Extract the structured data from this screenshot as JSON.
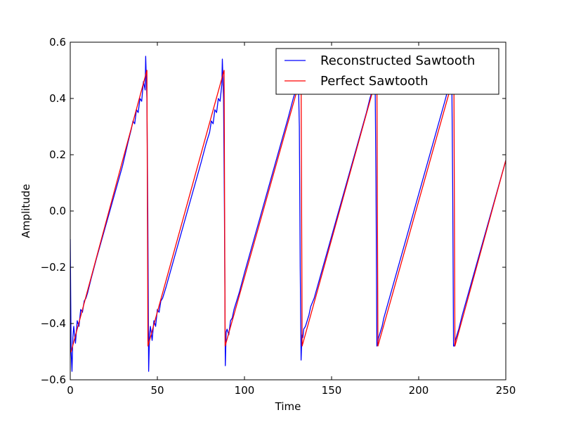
{
  "chart_data": {
    "type": "line",
    "title": "",
    "xlabel": "Time",
    "ylabel": "Amplitude",
    "xlim": [
      0,
      250
    ],
    "ylim": [
      -0.6,
      0.6
    ],
    "grid": false,
    "legend_placement": "upper-right",
    "xticks": [
      0,
      50,
      100,
      150,
      200,
      250
    ],
    "xtick_labels": [
      "0",
      "50",
      "100",
      "150",
      "200",
      "250"
    ],
    "yticks": [
      -0.6,
      -0.4,
      -0.2,
      0.0,
      0.2,
      0.4,
      0.6
    ],
    "ytick_labels": [
      "−0.6",
      "−0.4",
      "−0.2",
      "0.0",
      "0.2",
      "0.4",
      "0.6"
    ],
    "series": [
      {
        "name": "Reconstructed Sawtooth",
        "color": "#0000ff",
        "x": [
          0,
          0.5,
          1,
          1.5,
          2,
          3,
          4,
          5,
          6,
          7,
          8,
          9,
          10,
          12,
          15,
          20,
          25,
          30,
          33,
          35,
          36,
          37,
          38,
          39,
          40,
          41,
          42,
          43,
          43.3,
          44,
          44.5,
          45,
          45.5,
          46,
          47,
          48,
          49,
          50,
          51,
          52,
          53,
          55,
          60,
          65,
          70,
          75,
          78,
          80,
          81,
          82,
          83,
          84,
          85,
          86,
          87,
          87.3,
          88,
          88.5,
          89,
          89.5,
          90,
          91,
          92,
          93,
          94,
          95,
          97,
          100,
          105,
          110,
          115,
          120,
          125,
          128,
          130,
          131,
          131.5,
          132,
          132.5,
          133,
          133.5,
          134,
          135,
          136,
          137,
          138,
          140,
          145,
          150,
          155,
          160,
          165,
          170,
          172,
          174,
          175,
          175.5,
          176,
          176.5,
          177,
          178,
          179,
          180,
          185,
          190,
          195,
          200,
          205,
          210,
          215,
          218,
          219,
          219.5,
          220,
          220.5,
          221,
          222,
          223,
          225,
          230,
          235,
          240,
          245,
          250
        ],
        "y": [
          -0.1,
          -0.5,
          -0.57,
          -0.45,
          -0.41,
          -0.47,
          -0.39,
          -0.41,
          -0.35,
          -0.36,
          -0.32,
          -0.31,
          -0.29,
          -0.24,
          -0.17,
          -0.06,
          0.05,
          0.16,
          0.24,
          0.29,
          0.32,
          0.31,
          0.36,
          0.35,
          0.4,
          0.39,
          0.46,
          0.43,
          0.55,
          0.4,
          0.0,
          -0.57,
          -0.44,
          -0.41,
          -0.46,
          -0.39,
          -0.41,
          -0.35,
          -0.36,
          -0.32,
          -0.31,
          -0.27,
          -0.16,
          -0.05,
          0.06,
          0.17,
          0.24,
          0.28,
          0.32,
          0.31,
          0.36,
          0.35,
          0.4,
          0.39,
          0.45,
          0.54,
          0.4,
          0.0,
          -0.55,
          -0.43,
          -0.42,
          -0.44,
          -0.39,
          -0.38,
          -0.35,
          -0.33,
          -0.29,
          -0.22,
          -0.11,
          0.0,
          0.11,
          0.22,
          0.33,
          0.4,
          0.44,
          0.45,
          0.3,
          -0.2,
          -0.53,
          -0.44,
          -0.45,
          -0.42,
          -0.41,
          -0.39,
          -0.37,
          -0.34,
          -0.31,
          -0.2,
          -0.09,
          0.02,
          0.13,
          0.24,
          0.35,
          0.4,
          0.44,
          0.46,
          0.1,
          -0.48,
          -0.47,
          -0.45,
          -0.43,
          -0.41,
          -0.38,
          -0.27,
          -0.16,
          -0.05,
          0.06,
          0.17,
          0.28,
          0.39,
          0.46,
          0.48,
          0.1,
          -0.48,
          -0.48,
          -0.46,
          -0.44,
          -0.42,
          -0.37,
          -0.26,
          -0.15,
          -0.04,
          0.07,
          0.18
        ]
      },
      {
        "name": "Perfect Sawtooth",
        "color": "#ff0000",
        "x": [
          0,
          0.5,
          44,
          44.6,
          88.3,
          88.9,
          132.5,
          133.1,
          176,
          176.6,
          220.2,
          220.8,
          250
        ],
        "y": [
          -0.5,
          -0.5,
          0.5,
          -0.48,
          0.5,
          -0.48,
          0.48,
          -0.48,
          0.48,
          -0.48,
          0.48,
          -0.48,
          0.18
        ]
      }
    ]
  }
}
